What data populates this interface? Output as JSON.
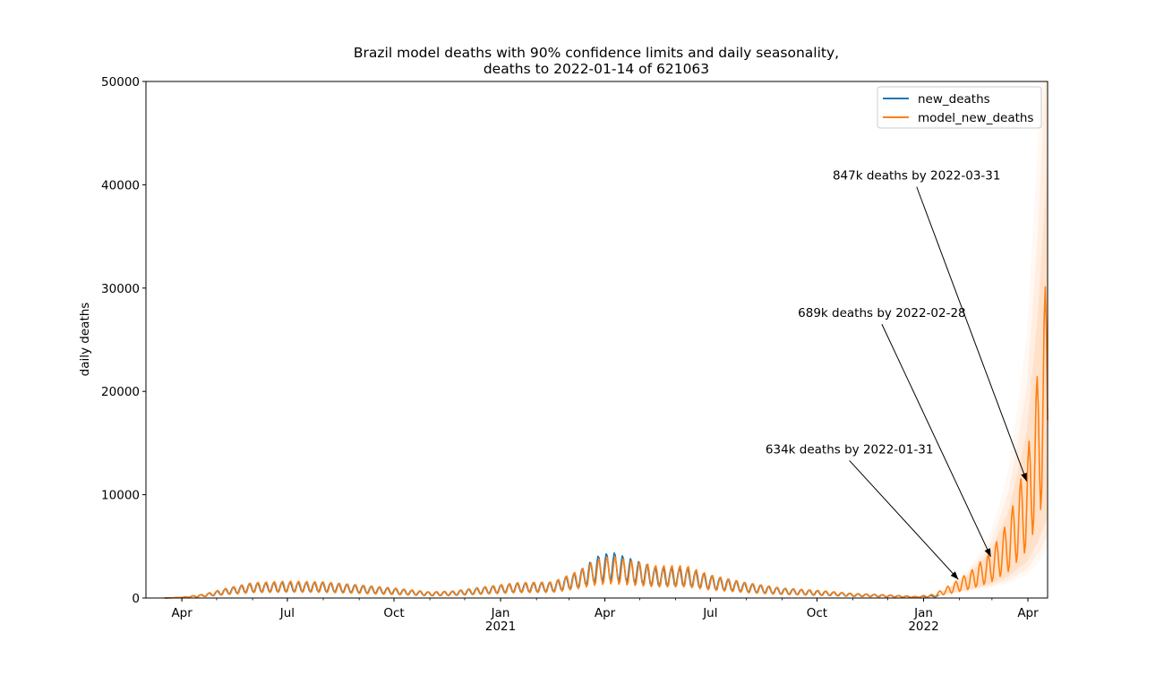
{
  "chart_data": {
    "type": "line",
    "title_line1": "Brazil model deaths with 90% confidence limits and daily seasonality,",
    "title_line2": "deaths to 2022-01-14 of 621063",
    "xlabel": "",
    "ylabel": "daily deaths",
    "x_range": [
      "2020-03-01",
      "2022-04-18"
    ],
    "ylim": [
      0,
      50000
    ],
    "y_ticks": [
      0,
      10000,
      20000,
      30000,
      40000,
      50000
    ],
    "x_ticks": [
      {
        "date": "2020-04-01",
        "label": "Apr",
        "year": ""
      },
      {
        "date": "2020-07-01",
        "label": "Jul",
        "year": ""
      },
      {
        "date": "2020-10-01",
        "label": "Oct",
        "year": ""
      },
      {
        "date": "2021-01-01",
        "label": "Jan",
        "year": "2021"
      },
      {
        "date": "2021-04-01",
        "label": "Apr",
        "year": ""
      },
      {
        "date": "2021-07-01",
        "label": "Jul",
        "year": ""
      },
      {
        "date": "2021-10-01",
        "label": "Oct",
        "year": ""
      },
      {
        "date": "2022-01-01",
        "label": "Jan",
        "year": "2022"
      },
      {
        "date": "2022-04-01",
        "label": "Apr",
        "year": ""
      }
    ],
    "grid": false,
    "legend_position": "top-right",
    "series": [
      {
        "name": "new_deaths",
        "color": "#1f77b4",
        "weekly_amplitude": 0.45,
        "points": [
          [
            "2020-03-17",
            0
          ],
          [
            "2020-04-01",
            50
          ],
          [
            "2020-04-20",
            250
          ],
          [
            "2020-05-10",
            650
          ],
          [
            "2020-06-01",
            1000
          ],
          [
            "2020-07-01",
            1050
          ],
          [
            "2020-08-01",
            1050
          ],
          [
            "2020-09-01",
            850
          ],
          [
            "2020-10-01",
            650
          ],
          [
            "2020-11-01",
            400
          ],
          [
            "2020-11-20",
            450
          ],
          [
            "2020-12-15",
            700
          ],
          [
            "2021-01-15",
            1000
          ],
          [
            "2021-02-15",
            1050
          ],
          [
            "2021-03-10",
            1800
          ],
          [
            "2021-03-25",
            2800
          ],
          [
            "2021-04-07",
            3100
          ],
          [
            "2021-04-25",
            2600
          ],
          [
            "2021-05-15",
            2000
          ],
          [
            "2021-06-10",
            2000
          ],
          [
            "2021-07-01",
            1500
          ],
          [
            "2021-08-01",
            1000
          ],
          [
            "2021-09-01",
            650
          ],
          [
            "2021-10-01",
            500
          ],
          [
            "2021-11-01",
            300
          ],
          [
            "2021-12-01",
            200
          ],
          [
            "2021-12-25",
            100
          ],
          [
            "2022-01-14",
            200
          ]
        ]
      },
      {
        "name": "model_new_deaths",
        "color": "#ff7f0e",
        "weekly_amplitude": 0.5,
        "points": [
          [
            "2020-03-17",
            0
          ],
          [
            "2020-04-01",
            50
          ],
          [
            "2020-04-20",
            250
          ],
          [
            "2020-05-10",
            650
          ],
          [
            "2020-06-01",
            1000
          ],
          [
            "2020-07-01",
            1100
          ],
          [
            "2020-08-01",
            1050
          ],
          [
            "2020-09-01",
            850
          ],
          [
            "2020-10-01",
            650
          ],
          [
            "2020-11-01",
            400
          ],
          [
            "2020-11-20",
            450
          ],
          [
            "2020-12-15",
            700
          ],
          [
            "2021-01-15",
            1000
          ],
          [
            "2021-02-15",
            1050
          ],
          [
            "2021-03-10",
            1800
          ],
          [
            "2021-03-25",
            2500
          ],
          [
            "2021-04-07",
            2700
          ],
          [
            "2021-04-25",
            2400
          ],
          [
            "2021-05-15",
            2100
          ],
          [
            "2021-06-10",
            2100
          ],
          [
            "2021-07-01",
            1500
          ],
          [
            "2021-08-01",
            1000
          ],
          [
            "2021-09-01",
            650
          ],
          [
            "2021-10-01",
            500
          ],
          [
            "2021-11-01",
            300
          ],
          [
            "2021-12-01",
            200
          ],
          [
            "2021-12-25",
            100
          ],
          [
            "2022-01-10",
            250
          ],
          [
            "2022-01-25",
            900
          ],
          [
            "2022-02-10",
            1700
          ],
          [
            "2022-02-28",
            3000
          ],
          [
            "2022-03-15",
            5000
          ],
          [
            "2022-03-31",
            9000
          ],
          [
            "2022-04-10",
            15000
          ],
          [
            "2022-04-18",
            22000
          ]
        ]
      }
    ],
    "annotations": [
      {
        "text": "634k deaths by 2022-01-31",
        "text_x": "2021-10-29",
        "text_y": 14000,
        "target_x": "2022-01-31",
        "target_y": 1800
      },
      {
        "text": "689k deaths by 2022-02-28",
        "text_x": "2021-11-26",
        "text_y": 27200,
        "target_x": "2022-02-28",
        "target_y": 4000
      },
      {
        "text": "847k deaths by 2022-03-31",
        "text_x": "2021-12-26",
        "text_y": 40500,
        "target_x": "2022-03-31",
        "target_y": 11300
      }
    ]
  }
}
